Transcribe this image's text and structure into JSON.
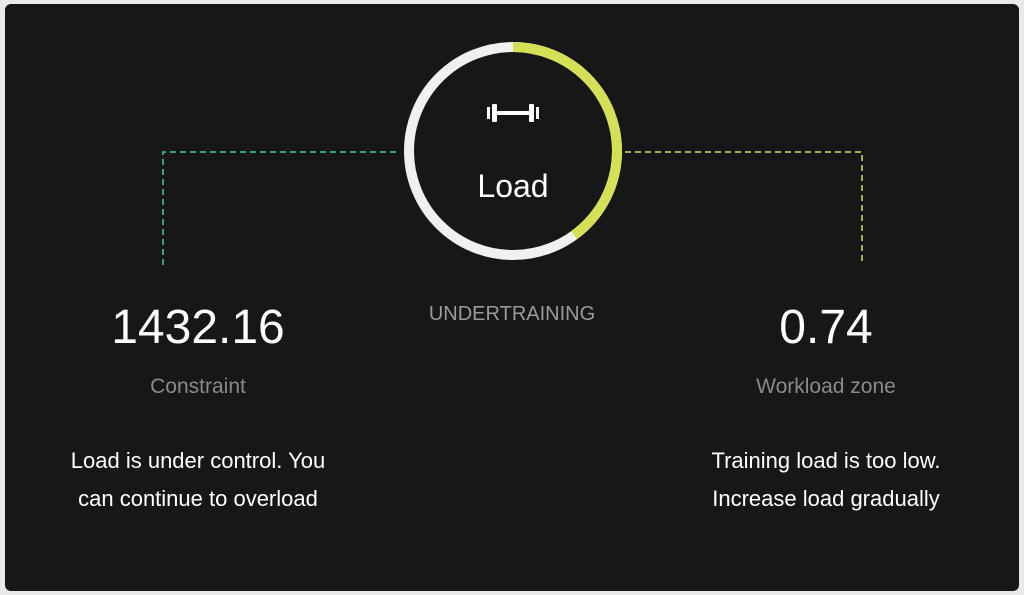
{
  "gauge": {
    "title": "Load",
    "icon": "dumbbell-icon",
    "progress_fraction": 0.4,
    "status": "UNDERTRAINING",
    "colors": {
      "track": "#f0f0f0",
      "progress": "#d4e157"
    }
  },
  "left": {
    "value": "1432.16",
    "label": "Constraint",
    "description_line1": "Load is under control. You",
    "description_line2": "can continue to overload",
    "accent": "#3ecf9a"
  },
  "right": {
    "value": "0.74",
    "label": "Workload zone",
    "description_line1": "Training load is too low.",
    "description_line2": "Increase load gradually",
    "accent": "#d4e157"
  }
}
